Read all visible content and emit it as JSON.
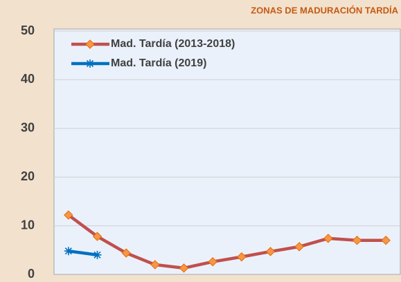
{
  "chart_data": {
    "type": "line",
    "title": "ZONAS DE MADURACIÓN TARDÍA",
    "categories": [
      null,
      null,
      null,
      null,
      null,
      null,
      null,
      null,
      null,
      null,
      null,
      null
    ],
    "series": [
      {
        "name": "Mad. Tardía (2013-2018)",
        "color": "#c0504d",
        "marker_color": "#f79646",
        "marker": "diamond",
        "values": [
          12.2,
          7.8,
          4.4,
          2.0,
          1.3,
          2.6,
          3.6,
          4.7,
          5.7,
          7.4,
          7.0,
          7.0
        ]
      },
      {
        "name": "Mad. Tardía (2019)",
        "color": "#0070c0",
        "marker_color": "#0070c0",
        "marker": "asterisk",
        "values": [
          4.8,
          4.0,
          null,
          null,
          null,
          null,
          null,
          null,
          null,
          null,
          null,
          null
        ]
      }
    ],
    "ylim": [
      0,
      50
    ],
    "yticks": [
      0,
      10,
      20,
      30,
      40,
      50
    ],
    "grid": true,
    "legend": "upper left"
  }
}
